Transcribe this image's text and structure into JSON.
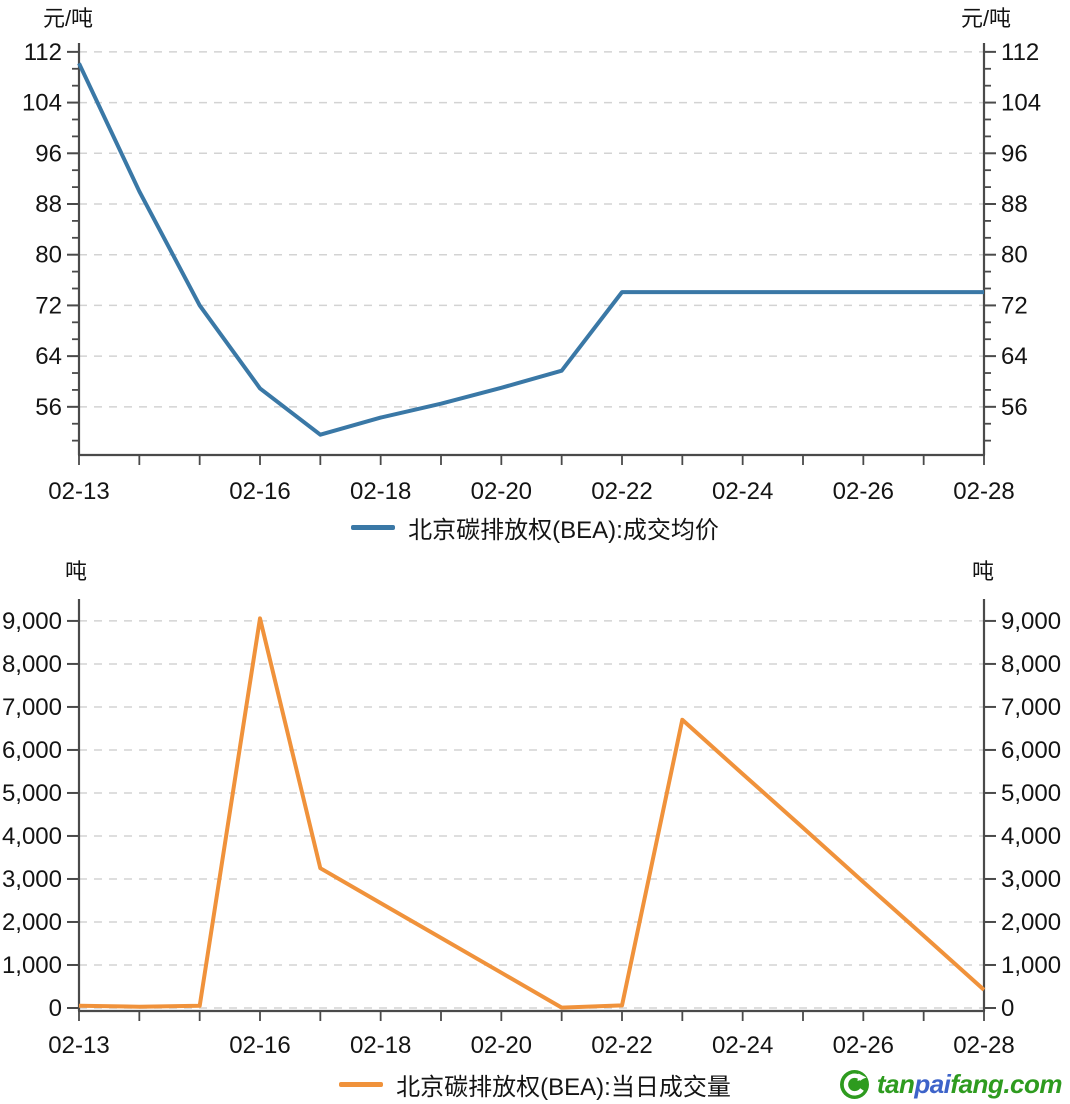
{
  "chart_data": [
    {
      "id": "price",
      "type": "line",
      "legend": "北京碳排放权(BEA):成交均价",
      "legend_position": "bottom-center",
      "unit": "元/吨",
      "line_color": "#3A78A6",
      "grid": "horizontal-dashed",
      "dual_y_axis": true,
      "x": [
        "02-13",
        "02-14",
        "02-15",
        "02-16",
        "02-17",
        "02-18",
        "02-19",
        "02-20",
        "02-21",
        "02-22",
        "02-23",
        "02-24",
        "02-25",
        "02-26",
        "02-27",
        "02-28"
      ],
      "x_tick_labels": [
        "02-13",
        "02-16",
        "02-18",
        "02-20",
        "02-22",
        "02-24",
        "02-26",
        "02-28"
      ],
      "values": [
        110.2,
        90.0,
        72.0,
        58.9,
        51.6,
        54.3,
        56.5,
        59.0,
        61.7,
        74.1,
        74.1,
        74.1,
        74.1,
        74.1,
        74.1,
        74.1
      ],
      "y_ticks": [
        56,
        64,
        72,
        80,
        88,
        96,
        104,
        112
      ],
      "y_tick_labels": [
        "56",
        "64",
        "72",
        "80",
        "88",
        "96",
        "104",
        "112"
      ],
      "ylim": [
        48.4,
        113.4
      ],
      "y_minor_per_interval": 2,
      "y_minor_below_first": 2
    },
    {
      "id": "volume",
      "type": "line",
      "legend": "北京碳排放权(BEA):当日成交量",
      "legend_position": "bottom-center",
      "unit": "吨",
      "line_color": "#F0923B",
      "grid": "horizontal-dashed",
      "dual_y_axis": true,
      "x": [
        "02-13",
        "02-14",
        "02-15",
        "02-16",
        "02-17",
        "02-18",
        "02-19",
        "02-20",
        "02-21",
        "02-22",
        "02-23",
        "02-24",
        "02-25",
        "02-26",
        "02-27",
        "02-28"
      ],
      "x_tick_labels": [
        "02-13",
        "02-16",
        "02-18",
        "02-20",
        "02-22",
        "02-24",
        "02-26",
        "02-28"
      ],
      "values": [
        50,
        30,
        50,
        9060,
        3250,
        2440,
        1630,
        820,
        10,
        60,
        6700,
        5440,
        4190,
        2930,
        1680,
        420
      ],
      "y_ticks": [
        0,
        1000,
        2000,
        3000,
        4000,
        5000,
        6000,
        7000,
        8000,
        9000
      ],
      "y_tick_labels": [
        "0",
        "1,000",
        "2,000",
        "3,000",
        "4,000",
        "5,000",
        "6,000",
        "7,000",
        "8,000",
        "9,000"
      ],
      "ylim": [
        -70,
        9510
      ],
      "y_minor_per_interval": 0,
      "y_minor_below_first": 0
    }
  ],
  "footer": {
    "logo_icon": "tanpaifang-leaf-circle-icon",
    "logo_icon_color": "#2E9B1F",
    "logo_text": [
      {
        "text": "tan",
        "color": "#2E9B1F"
      },
      {
        "text": "pai",
        "color": "#3D63C9"
      },
      {
        "text": "fang",
        "color": "#2E9B1F"
      },
      {
        "text": ".com",
        "color": "#2E9B1F"
      }
    ]
  }
}
